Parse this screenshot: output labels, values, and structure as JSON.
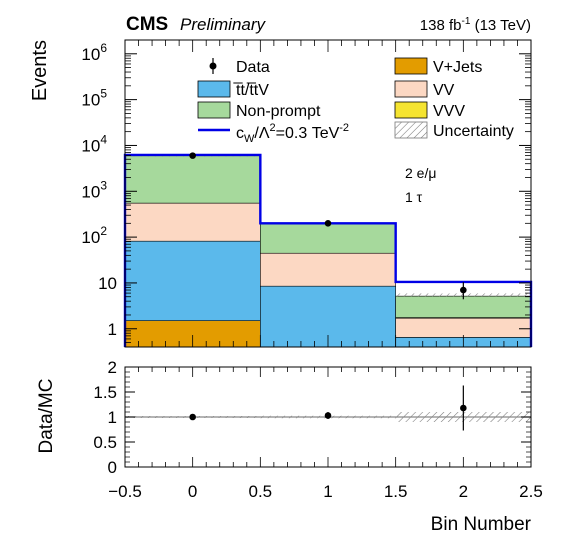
{
  "header": {
    "experiment": "CMS",
    "status": "Preliminary",
    "lumi": "138",
    "lumi_unit": "fb",
    "lumi_exp": "-1",
    "energy": "(13 TeV)"
  },
  "colors": {
    "vjets": "#E39C00",
    "ttbar": "#5BB9EB",
    "nonprompt": "#A6D99C",
    "vv": "#FCD8C3",
    "vvv": "#F5E431",
    "signal": "#0000E6",
    "uncertainty": "#888888"
  },
  "chart_data": [
    {
      "type": "bar",
      "stacked": true,
      "log_y": true,
      "ylabel": "Events",
      "ylim": [
        0.4,
        2000000
      ],
      "xlim": [
        -0.5,
        2.5
      ],
      "y_tick_labels": [
        "1",
        "10",
        "10",
        "10",
        "10",
        "10",
        "10"
      ],
      "y_tick_exponents": [
        "",
        "",
        "2",
        "3",
        "4",
        "5",
        "6"
      ],
      "bin_edges": [
        -0.5,
        0.5,
        1.5,
        2.5
      ],
      "bin_centers": [
        0,
        1,
        2
      ],
      "annotation": [
        "2 e/μ",
        "1 τ"
      ],
      "series": [
        {
          "name": "V+Jets",
          "key": "vjets",
          "values": [
            1.5,
            0,
            0
          ]
        },
        {
          "name": "t̅t/t̅tV",
          "key": "ttbar",
          "values": [
            80,
            8.5,
            0.65
          ]
        },
        {
          "name": "VV",
          "key": "vv",
          "values": [
            470,
            36,
            1.05
          ]
        },
        {
          "name": "VVV",
          "key": "vvv",
          "values": [
            0,
            0,
            0.05
          ]
        },
        {
          "name": "Non-prompt",
          "key": "nonprompt",
          "values": [
            5400,
            155,
            3.4
          ]
        }
      ],
      "data": {
        "name": "Data",
        "x": [
          0,
          1,
          2
        ],
        "y": [
          6000,
          200,
          7
        ],
        "y_err_low": [
          77,
          14,
          2.6
        ],
        "y_err_high": [
          78,
          15,
          3.4
        ]
      },
      "signal": {
        "values": [
          6200,
          200,
          10.5
        ]
      },
      "uncertainty_band": {
        "low": [
          5900,
          190,
          5.1
        ],
        "high": [
          6100,
          206,
          5.9
        ]
      },
      "legend": {
        "data": "Data",
        "ttbar": "t̅t/t̅tV",
        "nonprompt": "Non-prompt",
        "signal_prefix": "c",
        "signal_sub": "W",
        "signal_mid": "/Λ",
        "signal_sup": "2",
        "signal_value": "=0.3 TeV",
        "signal_unit_exp": "-2",
        "vjets": "V+Jets",
        "vv": "VV",
        "vvv": "VVV",
        "uncertainty": "Uncertainty"
      }
    },
    {
      "type": "scatter",
      "ylabel": "Data/MC",
      "xlabel": "Bin Number",
      "ylim": [
        0,
        2
      ],
      "xlim": [
        -0.5,
        2.5
      ],
      "y_ticks": [
        0,
        0.5,
        1,
        1.5,
        2
      ],
      "y_tick_labels": [
        "0",
        "0.5",
        "1",
        "1.5",
        "2"
      ],
      "x_ticks": [
        -0.5,
        0,
        0.5,
        1,
        1.5,
        2,
        2.5
      ],
      "x_tick_labels": [
        "−0.5",
        "0",
        "0.5",
        "1",
        "1.5",
        "2",
        "2.5"
      ],
      "ratio": {
        "x": [
          0,
          1,
          2
        ],
        "y": [
          1.0,
          1.03,
          1.18
        ],
        "y_err": [
          0.015,
          0.07,
          0.45
        ]
      },
      "band_low": [
        0.98,
        0.975,
        0.9
      ],
      "band_high": [
        1.02,
        1.025,
        1.1
      ],
      "reference_line": 1
    }
  ]
}
